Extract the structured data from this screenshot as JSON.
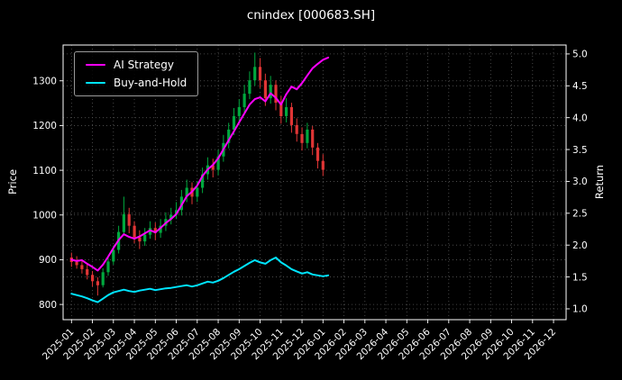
{
  "title": "cnindex [000683.SH]",
  "legend": {
    "items": [
      {
        "label": "AI Strategy",
        "color": "#ff00ff"
      },
      {
        "label": "Buy-and-Hold",
        "color": "#00e5ff"
      }
    ]
  },
  "axes": {
    "left_label": "Price",
    "right_label": "Return",
    "left_ticks": [
      800,
      900,
      1000,
      1100,
      1200,
      1300
    ],
    "right_tick_labels": [
      "1.0",
      "1.5",
      "2.0",
      "2.5",
      "3.0",
      "3.5",
      "4.0",
      "4.5",
      "5.0"
    ],
    "x_tick_labels": [
      "2025-01",
      "2025-02",
      "2025-03",
      "2025-04",
      "2025-05",
      "2025-06",
      "2025-07",
      "2025-08",
      "2025-09",
      "2025-10",
      "2025-11",
      "2025-12",
      "2026-01",
      "2026-02",
      "2026-03",
      "2026-04",
      "2026-05",
      "2026-06",
      "2026-07",
      "2026-08",
      "2026-09",
      "2026-10",
      "2026-11",
      "2026-12"
    ],
    "left_ylim": [
      766,
      1380
    ],
    "right_ylim": [
      0.83,
      5.14
    ],
    "xlim": [
      -0.4,
      23.6
    ],
    "grid": true
  },
  "colors": {
    "background": "#000000",
    "text": "#ffffff",
    "grid": "#565656",
    "candle_up": "#00a83e",
    "candle_down": "#e03535",
    "ai_line": "#ff00ff",
    "bh_line": "#00e5ff"
  },
  "chart_data": {
    "type": "candlestick",
    "title": "cnindex [000683.SH]",
    "xlabel": "",
    "ylabel_left": "Price",
    "ylabel_right": "Return",
    "x_unit": "months since 2025-01 (0 = 2025-01); axis extends to 2026-12 but data ends near 2026-01",
    "candles_ohlc": [
      [
        0.0,
        905,
        916,
        884,
        895
      ],
      [
        0.25,
        895,
        908,
        880,
        888
      ],
      [
        0.5,
        888,
        901,
        869,
        879
      ],
      [
        0.75,
        879,
        890,
        856,
        866
      ],
      [
        1.0,
        866,
        875,
        840,
        852
      ],
      [
        1.25,
        852,
        861,
        820,
        843
      ],
      [
        1.5,
        843,
        881,
        838,
        872
      ],
      [
        1.75,
        872,
        906,
        864,
        896
      ],
      [
        2.0,
        896,
        931,
        889,
        922
      ],
      [
        2.25,
        922,
        976,
        914,
        962
      ],
      [
        2.5,
        962,
        1041,
        954,
        1002
      ],
      [
        2.75,
        1002,
        1016,
        959,
        976
      ],
      [
        3.0,
        976,
        986,
        937,
        950
      ],
      [
        3.25,
        950,
        966,
        924,
        941
      ],
      [
        3.5,
        941,
        971,
        931,
        956
      ],
      [
        3.75,
        956,
        986,
        947,
        971
      ],
      [
        4.0,
        971,
        983,
        944,
        960
      ],
      [
        4.25,
        960,
        991,
        949,
        976
      ],
      [
        4.5,
        976,
        1006,
        964,
        991
      ],
      [
        4.75,
        991,
        1016,
        979,
        1001
      ],
      [
        5.0,
        1001,
        1029,
        991,
        1011
      ],
      [
        5.25,
        1011,
        1056,
        999,
        1041
      ],
      [
        5.5,
        1041,
        1079,
        1029,
        1061
      ],
      [
        5.75,
        1061,
        1073,
        1024,
        1041
      ],
      [
        6.0,
        1041,
        1076,
        1029,
        1061
      ],
      [
        6.25,
        1061,
        1106,
        1049,
        1091
      ],
      [
        6.5,
        1091,
        1129,
        1079,
        1111
      ],
      [
        6.75,
        1111,
        1126,
        1084,
        1101
      ],
      [
        7.0,
        1101,
        1146,
        1089,
        1131
      ],
      [
        7.25,
        1131,
        1179,
        1119,
        1161
      ],
      [
        7.5,
        1161,
        1206,
        1149,
        1191
      ],
      [
        7.75,
        1191,
        1239,
        1179,
        1221
      ],
      [
        8.0,
        1221,
        1259,
        1209,
        1241
      ],
      [
        8.25,
        1241,
        1291,
        1229,
        1271
      ],
      [
        8.5,
        1271,
        1321,
        1259,
        1301
      ],
      [
        8.75,
        1301,
        1363,
        1289,
        1331
      ],
      [
        9.0,
        1331,
        1351,
        1284,
        1301
      ],
      [
        9.25,
        1301,
        1316,
        1244,
        1261
      ],
      [
        9.5,
        1261,
        1311,
        1249,
        1291
      ],
      [
        9.75,
        1291,
        1301,
        1234,
        1251
      ],
      [
        10.0,
        1251,
        1266,
        1204,
        1221
      ],
      [
        10.25,
        1221,
        1261,
        1207,
        1241
      ],
      [
        10.5,
        1241,
        1251,
        1184,
        1201
      ],
      [
        10.75,
        1201,
        1216,
        1164,
        1181
      ],
      [
        11.0,
        1181,
        1196,
        1144,
        1161
      ],
      [
        11.25,
        1161,
        1206,
        1149,
        1191
      ],
      [
        11.5,
        1191,
        1199,
        1134,
        1151
      ],
      [
        11.75,
        1151,
        1161,
        1104,
        1121
      ],
      [
        12.0,
        1121,
        1136,
        1087,
        1101
      ]
    ],
    "series": [
      {
        "name": "AI Strategy",
        "color": "#ff00ff",
        "value_axis": "left (Price scale)",
        "points": [
          [
            0,
            900
          ],
          [
            0.25,
            897
          ],
          [
            0.5,
            899
          ],
          [
            0.75,
            891
          ],
          [
            1,
            884
          ],
          [
            1.25,
            876
          ],
          [
            1.5,
            889
          ],
          [
            1.75,
            907
          ],
          [
            2,
            926
          ],
          [
            2.25,
            944
          ],
          [
            2.5,
            957
          ],
          [
            2.75,
            951
          ],
          [
            3,
            947
          ],
          [
            3.25,
            952
          ],
          [
            3.5,
            959
          ],
          [
            3.75,
            966
          ],
          [
            4,
            961
          ],
          [
            4.25,
            971
          ],
          [
            4.5,
            982
          ],
          [
            4.75,
            991
          ],
          [
            5,
            1002
          ],
          [
            5.25,
            1022
          ],
          [
            5.5,
            1042
          ],
          [
            5.75,
            1052
          ],
          [
            6,
            1066
          ],
          [
            6.25,
            1087
          ],
          [
            6.5,
            1102
          ],
          [
            6.75,
            1112
          ],
          [
            7,
            1127
          ],
          [
            7.25,
            1147
          ],
          [
            7.5,
            1167
          ],
          [
            7.75,
            1187
          ],
          [
            8,
            1207
          ],
          [
            8.25,
            1227
          ],
          [
            8.5,
            1247
          ],
          [
            8.75,
            1259
          ],
          [
            9,
            1263
          ],
          [
            9.25,
            1254
          ],
          [
            9.5,
            1272
          ],
          [
            9.75,
            1262
          ],
          [
            10,
            1247
          ],
          [
            10.25,
            1270
          ],
          [
            10.5,
            1287
          ],
          [
            10.75,
            1281
          ],
          [
            11,
            1295
          ],
          [
            11.25,
            1312
          ],
          [
            11.5,
            1328
          ],
          [
            11.75,
            1338
          ],
          [
            12,
            1347
          ],
          [
            12.25,
            1352
          ]
        ]
      },
      {
        "name": "Buy-and-Hold",
        "color": "#00e5ff",
        "value_axis": "left (Price scale)",
        "points": [
          [
            0,
            824
          ],
          [
            0.25,
            821
          ],
          [
            0.5,
            818
          ],
          [
            0.75,
            814
          ],
          [
            1,
            809
          ],
          [
            1.25,
            805
          ],
          [
            1.5,
            813
          ],
          [
            1.75,
            821
          ],
          [
            2,
            827
          ],
          [
            2.25,
            830
          ],
          [
            2.5,
            833
          ],
          [
            2.75,
            830
          ],
          [
            3,
            828
          ],
          [
            3.25,
            831
          ],
          [
            3.5,
            833
          ],
          [
            3.75,
            835
          ],
          [
            4,
            832
          ],
          [
            4.25,
            834
          ],
          [
            4.5,
            836
          ],
          [
            4.75,
            837
          ],
          [
            5,
            839
          ],
          [
            5.25,
            841
          ],
          [
            5.5,
            843
          ],
          [
            5.75,
            840
          ],
          [
            6,
            843
          ],
          [
            6.25,
            847
          ],
          [
            6.5,
            851
          ],
          [
            6.75,
            849
          ],
          [
            7,
            853
          ],
          [
            7.25,
            859
          ],
          [
            7.5,
            866
          ],
          [
            7.75,
            873
          ],
          [
            8,
            879
          ],
          [
            8.25,
            886
          ],
          [
            8.5,
            893
          ],
          [
            8.75,
            899
          ],
          [
            9,
            894
          ],
          [
            9.25,
            891
          ],
          [
            9.5,
            899
          ],
          [
            9.75,
            905
          ],
          [
            10,
            894
          ],
          [
            10.25,
            887
          ],
          [
            10.5,
            879
          ],
          [
            10.75,
            874
          ],
          [
            11,
            869
          ],
          [
            11.25,
            872
          ],
          [
            11.5,
            867
          ],
          [
            11.75,
            865
          ],
          [
            12,
            863
          ],
          [
            12.25,
            865
          ]
        ]
      }
    ]
  }
}
